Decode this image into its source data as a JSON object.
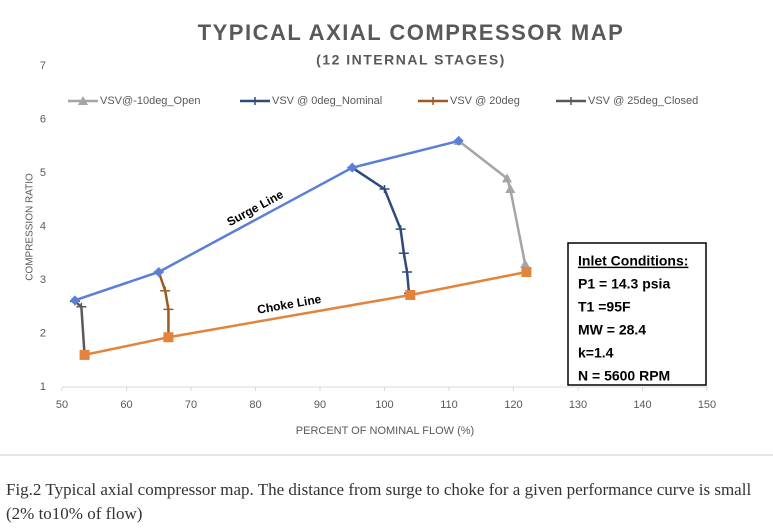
{
  "chart_data": {
    "type": "line",
    "title": "TYPICAL AXIAL COMPRESSOR MAP",
    "subtitle": "(12 INTERNAL STAGES)",
    "x_label": "PERCENT OF NOMINAL FLOW (%)",
    "y_label": "COMPRESSION RATIO",
    "xlim": [
      50,
      150
    ],
    "xticks": [
      50,
      60,
      70,
      80,
      90,
      100,
      110,
      120,
      130,
      140,
      150
    ],
    "ylim": [
      1,
      7
    ],
    "yticks": [
      1,
      2,
      3,
      4,
      5,
      6,
      7
    ],
    "grid": false,
    "legend": "top",
    "series": [
      {
        "name": "VSV@-10deg_Open",
        "color": "#a5a5a5",
        "marker": "triangle",
        "in_legend": true,
        "x": [
          111.5,
          119,
          119.5,
          121.8
        ],
        "values": [
          5.6,
          4.9,
          4.7,
          3.3
        ]
      },
      {
        "name": "VSV @ 0deg_Nominal",
        "color": "#2f4b7c",
        "marker": "plus",
        "in_legend": true,
        "x": [
          95,
          100,
          102.5,
          103,
          103.5,
          103.8
        ],
        "values": [
          5.1,
          4.7,
          3.95,
          3.5,
          3.15,
          2.75
        ]
      },
      {
        "name": "VSV @ 20deg",
        "color": "#9c5a25",
        "marker": "plus",
        "in_legend": true,
        "x": [
          65,
          66,
          66.5,
          66.5
        ],
        "values": [
          3.15,
          2.8,
          2.45,
          1.95
        ]
      },
      {
        "name": "VSV @ 25deg_Closed",
        "color": "#595959",
        "marker": "plus",
        "in_legend": true,
        "x": [
          52,
          53,
          53.5
        ],
        "values": [
          2.6,
          2.5,
          1.6
        ]
      },
      {
        "name": "Surge Line",
        "color": "#5b7fd6",
        "marker": "diamond",
        "in_legend": false,
        "x": [
          52,
          65,
          95,
          111.5
        ],
        "values": [
          2.62,
          3.15,
          5.1,
          5.6
        ]
      },
      {
        "name": "Choke Line",
        "color": "#e2843c",
        "marker": "square",
        "in_legend": false,
        "x": [
          53.5,
          66.5,
          104,
          122
        ],
        "values": [
          1.6,
          1.93,
          2.72,
          3.15
        ]
      }
    ],
    "inlet_conditions": {
      "title": "Inlet Conditions:",
      "lines": [
        "P1 = 14.3 psia",
        "T1 =95F",
        "MW = 28.4",
        "k=1.4",
        "N = 5600 RPM"
      ]
    }
  },
  "caption": "Fig.2 Typical axial compressor map. The distance from surge to choke for a given performance curve is small (2% to10% of flow)"
}
